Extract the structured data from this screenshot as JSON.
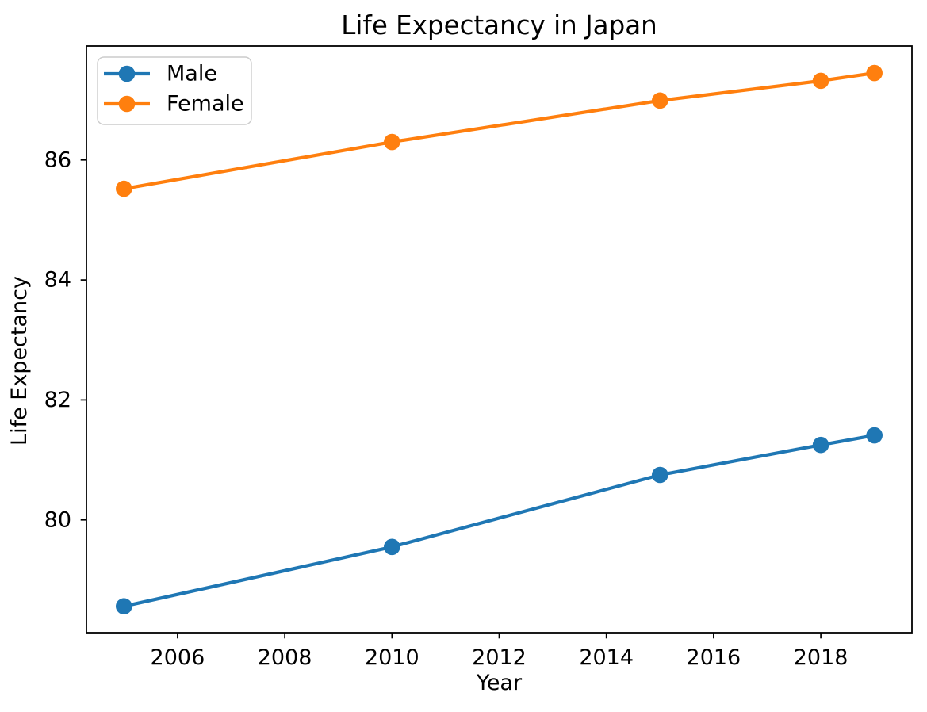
{
  "chart_data": {
    "type": "line",
    "title": "Life Expectancy in Japan",
    "xlabel": "Year",
    "ylabel": "Life Expectancy",
    "x": [
      2005,
      2010,
      2015,
      2018,
      2019
    ],
    "series": [
      {
        "name": "Male",
        "color": "#1f77b4",
        "values": [
          78.56,
          79.55,
          80.75,
          81.25,
          81.41
        ]
      },
      {
        "name": "Female",
        "color": "#ff7f0e",
        "values": [
          85.52,
          86.3,
          86.99,
          87.32,
          87.45
        ]
      }
    ],
    "xlim": [
      2004.3,
      2019.7
    ],
    "ylim": [
      78.12,
      87.9
    ],
    "xticks": [
      2006,
      2008,
      2010,
      2012,
      2014,
      2016,
      2018
    ],
    "yticks": [
      80,
      82,
      84,
      86
    ],
    "legend_position": "upper-left",
    "grid": false,
    "background_color": "#ffffff",
    "spine_color": "#000000",
    "legend_border_color": "#cccccc"
  }
}
